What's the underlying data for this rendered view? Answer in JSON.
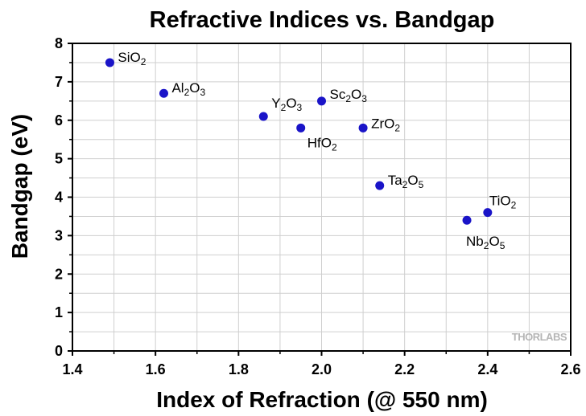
{
  "chart_data": {
    "type": "scatter",
    "title": "Refractive Indices vs. Bandgap",
    "xlabel": "Index of  Refraction (@ 550 nm)",
    "ylabel": "Bandgap (eV)",
    "xlim": [
      1.4,
      2.6
    ],
    "ylim": [
      0,
      8
    ],
    "x_ticks": [
      "1.4",
      "1.6",
      "1.8",
      "2.0",
      "2.2",
      "2.4",
      "2.6"
    ],
    "y_ticks": [
      "0",
      "1",
      "2",
      "3",
      "4",
      "5",
      "6",
      "7",
      "8"
    ],
    "grid": true,
    "marker_color": "#1a14c8",
    "points": [
      {
        "label": [
          [
            "Si",
            ""
          ],
          [
            "O",
            "2"
          ]
        ],
        "x": 1.49,
        "y": 7.5
      },
      {
        "label": [
          [
            "Al",
            "2"
          ],
          [
            "O",
            "3"
          ]
        ],
        "x": 1.62,
        "y": 6.7
      },
      {
        "label": [
          [
            "Y",
            "2"
          ],
          [
            "O",
            "3"
          ]
        ],
        "x": 1.86,
        "y": 6.1
      },
      {
        "label": [
          [
            "Hf",
            ""
          ],
          [
            "O",
            "2"
          ]
        ],
        "x": 1.95,
        "y": 5.8
      },
      {
        "label": [
          [
            "Sc",
            "2"
          ],
          [
            "O",
            "3"
          ]
        ],
        "x": 2.0,
        "y": 6.5
      },
      {
        "label": [
          [
            "Zr",
            ""
          ],
          [
            "O",
            "2"
          ]
        ],
        "x": 2.1,
        "y": 5.8
      },
      {
        "label": [
          [
            "Ta",
            "2"
          ],
          [
            "O",
            "5"
          ]
        ],
        "x": 2.14,
        "y": 4.3
      },
      {
        "label": [
          [
            "Ti",
            ""
          ],
          [
            "O",
            "2"
          ]
        ],
        "x": 2.4,
        "y": 3.6
      },
      {
        "label": [
          [
            "Nb",
            "2"
          ],
          [
            "O",
            "5"
          ]
        ],
        "x": 2.35,
        "y": 3.4
      }
    ]
  },
  "watermark": "THORLABS"
}
